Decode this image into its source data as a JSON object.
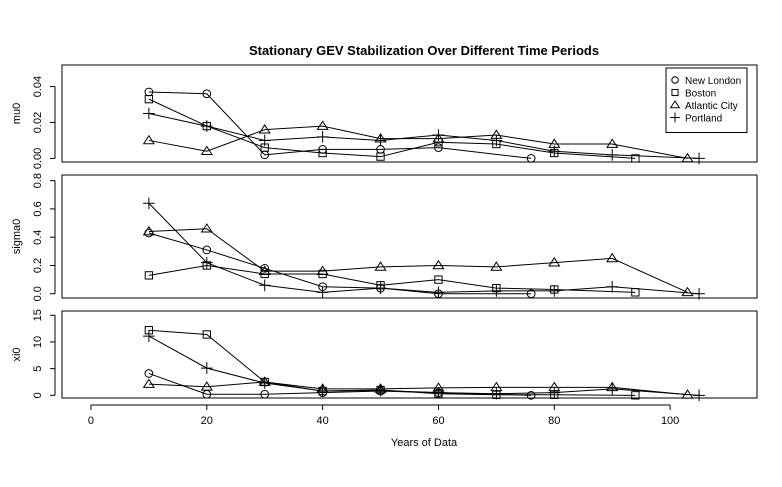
{
  "chart_data": {
    "type": "line",
    "title": "Stationary GEV Stabilization Over Different Time Periods",
    "xlabel": "Years of Data",
    "xlim": [
      -5,
      115
    ],
    "xticks": [
      0,
      20,
      40,
      60,
      80,
      100
    ],
    "legend_placement": "top-right",
    "series_styles": [
      {
        "name": "New London",
        "marker": "circle"
      },
      {
        "name": "Boston",
        "marker": "square"
      },
      {
        "name": "Atlantic City",
        "marker": "triangle"
      },
      {
        "name": "Portland",
        "marker": "plus"
      }
    ],
    "panels": [
      {
        "ylabel": "mu0",
        "ylim": [
          -0.002,
          0.052
        ],
        "yticks": [
          0.0,
          0.02,
          0.04
        ],
        "ytick_labels": [
          "0.00",
          "0.02",
          "0.04"
        ],
        "show_legend": true,
        "series": [
          {
            "name": "New London",
            "x": [
              10,
              20,
              30,
              40,
              50,
              60,
              76
            ],
            "y": [
              0.037,
              0.036,
              0.002,
              0.005,
              0.005,
              0.006,
              0.0
            ]
          },
          {
            "name": "Boston",
            "x": [
              10,
              20,
              30,
              40,
              50,
              60,
              70,
              80,
              94
            ],
            "y": [
              0.033,
              0.018,
              0.006,
              0.003,
              0.001,
              0.009,
              0.008,
              0.003,
              0.0
            ]
          },
          {
            "name": "Atlantic City",
            "x": [
              10,
              20,
              30,
              40,
              50,
              60,
              70,
              80,
              90,
              103
            ],
            "y": [
              0.01,
              0.004,
              0.016,
              0.018,
              0.011,
              0.011,
              0.013,
              0.008,
              0.008,
              0.0
            ]
          },
          {
            "name": "Portland",
            "x": [
              10,
              20,
              30,
              40,
              50,
              60,
              70,
              80,
              90,
              105
            ],
            "y": [
              0.025,
              0.018,
              0.01,
              0.012,
              0.01,
              0.013,
              0.01,
              0.004,
              0.002,
              0.0
            ]
          }
        ]
      },
      {
        "ylabel": "sigma0",
        "ylim": [
          -0.03,
          0.84
        ],
        "yticks": [
          0.0,
          0.2,
          0.4,
          0.6,
          0.8
        ],
        "ytick_labels": [
          "0.0",
          "0.2",
          "0.4",
          "0.6",
          "0.8"
        ],
        "show_legend": false,
        "series": [
          {
            "name": "New London",
            "x": [
              10,
              20,
              30,
              40,
              50,
              60,
              76
            ],
            "y": [
              0.43,
              0.31,
              0.18,
              0.05,
              0.04,
              0.0,
              0.0
            ]
          },
          {
            "name": "Boston",
            "x": [
              10,
              20,
              30,
              40,
              50,
              60,
              70,
              80,
              94
            ],
            "y": [
              0.13,
              0.2,
              0.14,
              0.14,
              0.06,
              0.1,
              0.04,
              0.03,
              0.01
            ]
          },
          {
            "name": "Atlantic City",
            "x": [
              10,
              20,
              30,
              40,
              50,
              60,
              70,
              80,
              90,
              103
            ],
            "y": [
              0.44,
              0.46,
              0.16,
              0.16,
              0.19,
              0.2,
              0.19,
              0.22,
              0.25,
              0.01
            ]
          },
          {
            "name": "Portland",
            "x": [
              10,
              20,
              30,
              40,
              50,
              60,
              70,
              80,
              90,
              105
            ],
            "y": [
              0.64,
              0.22,
              0.06,
              0.01,
              0.04,
              0.01,
              0.02,
              0.02,
              0.05,
              0.0
            ]
          }
        ]
      },
      {
        "ylabel": "xi0",
        "ylim": [
          -0.5,
          15.8
        ],
        "yticks": [
          0,
          5,
          10,
          15
        ],
        "ytick_labels": [
          "0",
          "5",
          "10",
          "15"
        ],
        "show_legend": false,
        "series": [
          {
            "name": "New London",
            "x": [
              10,
              20,
              30,
              40,
              50,
              60,
              76
            ],
            "y": [
              4.1,
              0.2,
              0.2,
              0.5,
              0.8,
              0.5,
              0.0
            ]
          },
          {
            "name": "Boston",
            "x": [
              10,
              20,
              30,
              40,
              50,
              60,
              70,
              80,
              94
            ],
            "y": [
              12.2,
              11.4,
              2.5,
              0.8,
              1.0,
              0.3,
              0.1,
              0.1,
              0.0
            ]
          },
          {
            "name": "Atlantic City",
            "x": [
              10,
              20,
              30,
              40,
              50,
              60,
              70,
              80,
              90,
              103
            ],
            "y": [
              2.1,
              1.6,
              2.5,
              1.2,
              1.2,
              1.4,
              1.5,
              1.5,
              1.5,
              0.1
            ]
          },
          {
            "name": "Portland",
            "x": [
              10,
              20,
              30,
              40,
              50,
              60,
              70,
              80,
              90,
              105
            ],
            "y": [
              11.1,
              5.1,
              2.3,
              0.8,
              0.9,
              0.5,
              0.3,
              0.5,
              1.2,
              0.0
            ]
          }
        ]
      }
    ]
  }
}
